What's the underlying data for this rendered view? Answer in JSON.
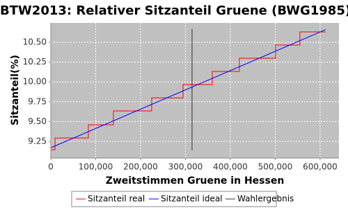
{
  "chart_data": {
    "type": "line",
    "title": "BTW2013: Relativer Sitzanteil Gruene (BWG1985)",
    "x_label": "Zweitstimmen Gruene in Hessen",
    "y_label": "Sitzanteil(%)",
    "xlim": [
      0,
      642000
    ],
    "ylim": [
      9.04,
      10.745
    ],
    "xticks": [
      {
        "value": 0,
        "label": "0"
      },
      {
        "value": 100000,
        "label": "100,000"
      },
      {
        "value": 200000,
        "label": "200,000"
      },
      {
        "value": 300000,
        "label": "300,000"
      },
      {
        "value": 400000,
        "label": "400,000"
      },
      {
        "value": 500000,
        "label": "500,000"
      },
      {
        "value": 600000,
        "label": "600,000"
      }
    ],
    "yticks": [
      {
        "value": 9.25,
        "label": "9.25"
      },
      {
        "value": 9.5,
        "label": "9.50"
      },
      {
        "value": 9.75,
        "label": "9.75"
      },
      {
        "value": 10,
        "label": "10.00"
      },
      {
        "value": 10.25,
        "label": "10.25"
      },
      {
        "value": 10.5,
        "label": "10.50"
      }
    ],
    "grid": true,
    "series": [
      {
        "name": "Sitzanteil real",
        "color": "#ff0000",
        "step": true,
        "x": [
          0,
          9300,
          83700,
          139500,
          224800,
          294600,
          359700,
          420200,
          500800,
          555000,
          612400
        ],
        "values": [
          9.145,
          9.294,
          9.46,
          9.635,
          9.8,
          9.967,
          10.133,
          10.299,
          10.465,
          10.631,
          10.631
        ]
      },
      {
        "name": "Sitzanteil ideal",
        "color": "#0000ff",
        "x": [
          0,
          612400
        ],
        "values": [
          9.17,
          10.66
        ]
      },
      {
        "name": "Wahlergebnis",
        "color": "#333333",
        "x": [
          314700,
          314700
        ],
        "values": [
          9.14,
          10.667
        ]
      }
    ]
  }
}
